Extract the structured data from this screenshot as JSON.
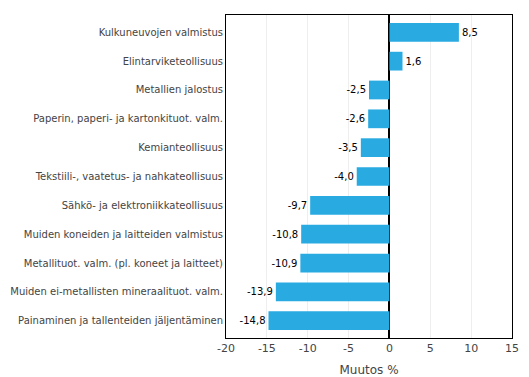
{
  "chart_data": {
    "type": "bar",
    "orientation": "horizontal",
    "categories": [
      "Painaminen ja tallenteiden jäljentäminen",
      "Muiden ei-metallisten mineraalituot. valm.",
      "Metallituot. valm. (pl. koneet ja laitteet)",
      "Muiden koneiden ja laitteiden valmistus",
      "Sähkö- ja elektroniikkateollisuus",
      "Tekstiili-, vaatetus- ja nahkateollisuus",
      "Kemianteollisuus",
      "Paperin, paperi- ja kartonkituot. valm.",
      "Metallien jalostus",
      "Elintarviketeollisuus",
      "Kulkuneuvojen valmistus"
    ],
    "values": [
      -14.8,
      -13.9,
      -10.9,
      -10.8,
      -9.7,
      -4.0,
      -3.5,
      -2.6,
      -2.5,
      1.6,
      8.5
    ],
    "value_labels": [
      "-14,8",
      "-13,9",
      "-10,9",
      "-10,8",
      "-9,7",
      "-4,0",
      "-3,5",
      "-2,6",
      "-2,5",
      "1,6",
      "8,5"
    ],
    "data_labels": true,
    "color": "#29abe2",
    "xlabel": "Muutos %",
    "xlim": [
      -20,
      15
    ],
    "xticks": [
      -20,
      -15,
      -10,
      -5,
      0,
      5,
      10,
      15
    ],
    "grid": true
  }
}
